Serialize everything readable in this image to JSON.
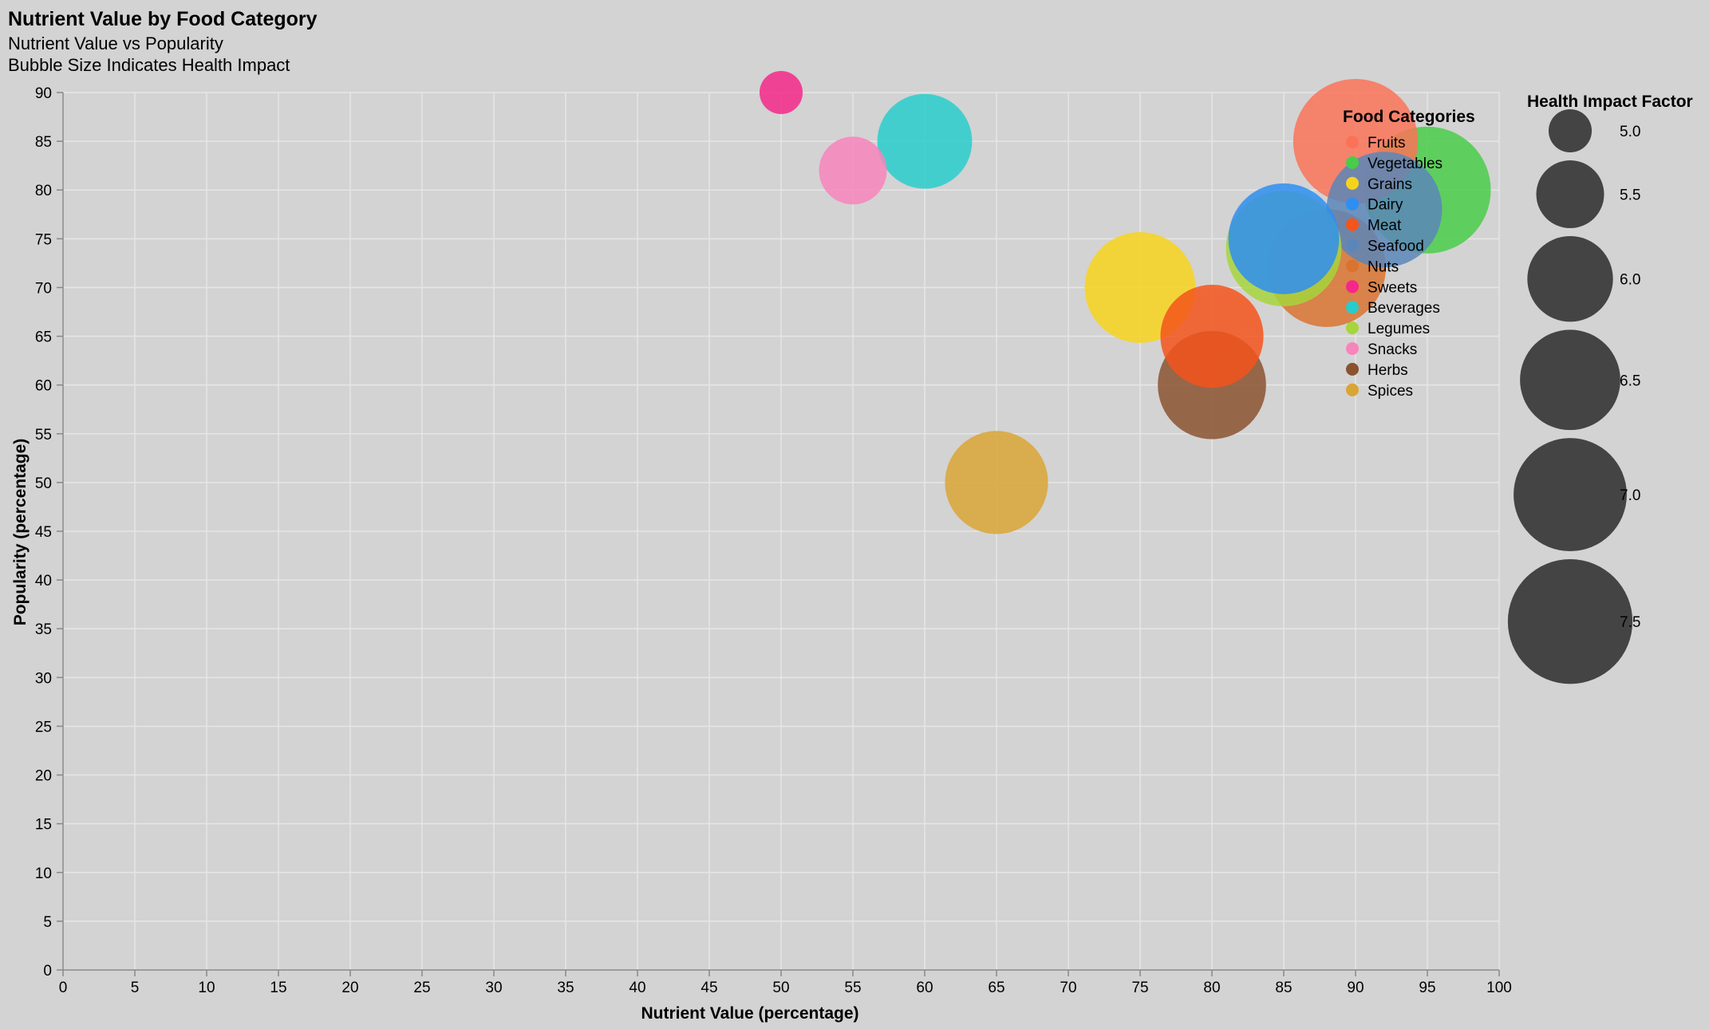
{
  "chart_data": {
    "type": "scatter",
    "title": "Nutrient Value by Food Category",
    "subtitle": [
      "Nutrient Value vs Popularity",
      "Bubble Size Indicates Health Impact"
    ],
    "xlabel": "Nutrient Value (percentage)",
    "ylabel": "Popularity (percentage)",
    "xlim": [
      0,
      100
    ],
    "ylim": [
      0,
      90
    ],
    "x_ticks": [
      0,
      5,
      10,
      15,
      20,
      25,
      30,
      35,
      40,
      45,
      50,
      55,
      60,
      65,
      70,
      75,
      80,
      85,
      90,
      95,
      100
    ],
    "y_ticks": [
      0,
      5,
      10,
      15,
      20,
      25,
      30,
      35,
      40,
      45,
      50,
      55,
      60,
      65,
      70,
      75,
      80,
      85,
      90
    ],
    "grid": true,
    "color_legend": {
      "title": "Food Categories",
      "placement": "top-right inside plot"
    },
    "size_legend": {
      "title": "Health Impact Factor",
      "placement": "right",
      "values": [
        5.0,
        5.5,
        6.0,
        6.5,
        7.0,
        7.5
      ],
      "labels": [
        "5.0",
        "5.5",
        "6.0",
        "6.5",
        "7.0",
        "7.5"
      ]
    },
    "series": [
      {
        "name": "Fruits",
        "color": "#fa7358",
        "x": 90,
        "y": 85,
        "impact": 7.5
      },
      {
        "name": "Vegetables",
        "color": "#49cc49",
        "x": 95,
        "y": 80,
        "impact": 7.6
      },
      {
        "name": "Grains",
        "color": "#f7d41c",
        "x": 75,
        "y": 70,
        "impact": 6.9
      },
      {
        "name": "Dairy",
        "color": "#2e8ef2",
        "x": 85,
        "y": 75,
        "impact": 6.9
      },
      {
        "name": "Meat",
        "color": "#f5541b",
        "x": 80,
        "y": 65,
        "impact": 6.6
      },
      {
        "name": "Seafood",
        "color": "#5a86b9",
        "x": 92,
        "y": 78,
        "impact": 7.1
      },
      {
        "name": "Nuts",
        "color": "#d97330",
        "x": 88,
        "y": 72,
        "impact": 7.2
      },
      {
        "name": "Sweets",
        "color": "#f5288a",
        "x": 50,
        "y": 90,
        "impact": 5.0
      },
      {
        "name": "Beverages",
        "color": "#29cccc",
        "x": 60,
        "y": 85,
        "impact": 6.3
      },
      {
        "name": "Legumes",
        "color": "#a6d53c",
        "x": 85,
        "y": 74,
        "impact": 7.1
      },
      {
        "name": "Snacks",
        "color": "#f784bb",
        "x": 55,
        "y": 82,
        "impact": 5.5
      },
      {
        "name": "Herbs",
        "color": "#8b5230",
        "x": 80,
        "y": 60,
        "impact": 6.8
      },
      {
        "name": "Spices",
        "color": "#d9a535",
        "x": 65,
        "y": 50,
        "impact": 6.6
      }
    ]
  }
}
